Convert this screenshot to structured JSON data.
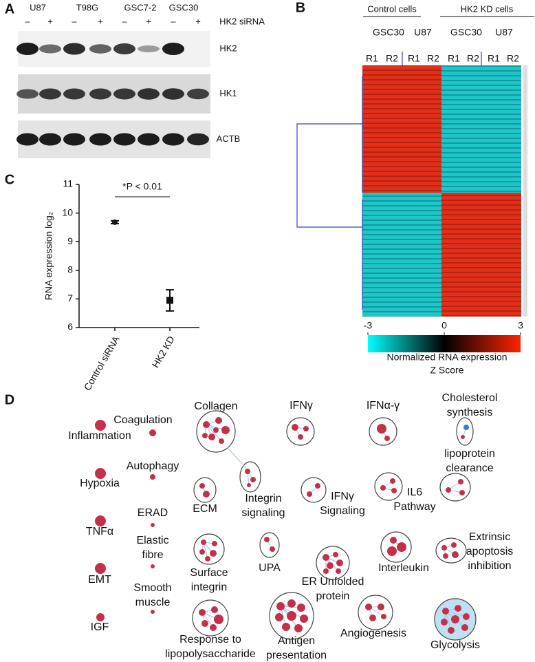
{
  "panel_a": {
    "letter": "A",
    "cell_lines": [
      "U87",
      "T98G",
      "GSC7-2",
      "GSC30"
    ],
    "signs": [
      "–",
      "+",
      "–",
      "+",
      "–",
      "+",
      "–",
      "+"
    ],
    "treatment": "HK2 siRNA",
    "blots": [
      "HK2",
      "HK1",
      "ACTB"
    ]
  },
  "panel_b": {
    "letter": "B",
    "groups": [
      "Control cells",
      "HK2 KD cells"
    ],
    "cell_lines": [
      "GSC30",
      "U87",
      "GSC30",
      "U87"
    ],
    "replicates": [
      "R1",
      "R2",
      "R1",
      "R2",
      "R1",
      "R2",
      "R1",
      "R2"
    ],
    "colorbar": {
      "lim": [
        -3,
        3
      ],
      "ticks": [
        -3,
        0,
        3
      ],
      "label": [
        "Normalized RNA expression",
        "Z Score"
      ]
    }
  },
  "chart_data": {
    "type": "scatter",
    "letter": "C",
    "y_label": "RNA expression log₂",
    "annotation": "*P < 0.01",
    "categories": [
      "Control siRNA",
      "HK2 KD"
    ],
    "values": [
      9.68,
      6.95
    ],
    "errors": [
      0.05,
      0.37
    ],
    "markers": [
      "circle",
      "square"
    ],
    "color": "#111111",
    "ylim": [
      6,
      11
    ],
    "yticks": [
      6,
      7,
      8,
      9,
      10,
      11
    ]
  },
  "panel_d": {
    "letter": "D",
    "labels": [
      [
        "Inflammation"
      ],
      [
        "Coagulation"
      ],
      [
        "Collagen"
      ],
      [
        "IFNγ"
      ],
      [
        "IFNα-γ"
      ],
      [
        "Cholesterol",
        "synthesis"
      ],
      [
        "Hypoxia"
      ],
      [
        "Autophagy"
      ],
      [
        "lipoprotein",
        "clearance"
      ],
      [
        "ECM"
      ],
      [
        "Integrin",
        "signaling"
      ],
      [
        "IFNγ",
        "Signaling"
      ],
      [
        "IL6",
        "Pathway"
      ],
      [
        "TNFα"
      ],
      [
        "ERAD"
      ],
      [
        "Elastic",
        "fibre"
      ],
      [
        "Surface",
        "integrin"
      ],
      [
        "UPA"
      ],
      [
        "ER Unfolded",
        "protein"
      ],
      [
        "Interleukin"
      ],
      [
        "Extrinsic",
        "apoptosis",
        "inhibition"
      ],
      [
        "EMT"
      ],
      [
        "Smooth",
        "muscle"
      ],
      [
        "IGF"
      ],
      [
        "Response to",
        "lipopolysaccharide"
      ],
      [
        "Antigen",
        "presentation"
      ],
      [
        "Angiogenesis"
      ],
      [
        "Glycolysis"
      ]
    ]
  }
}
